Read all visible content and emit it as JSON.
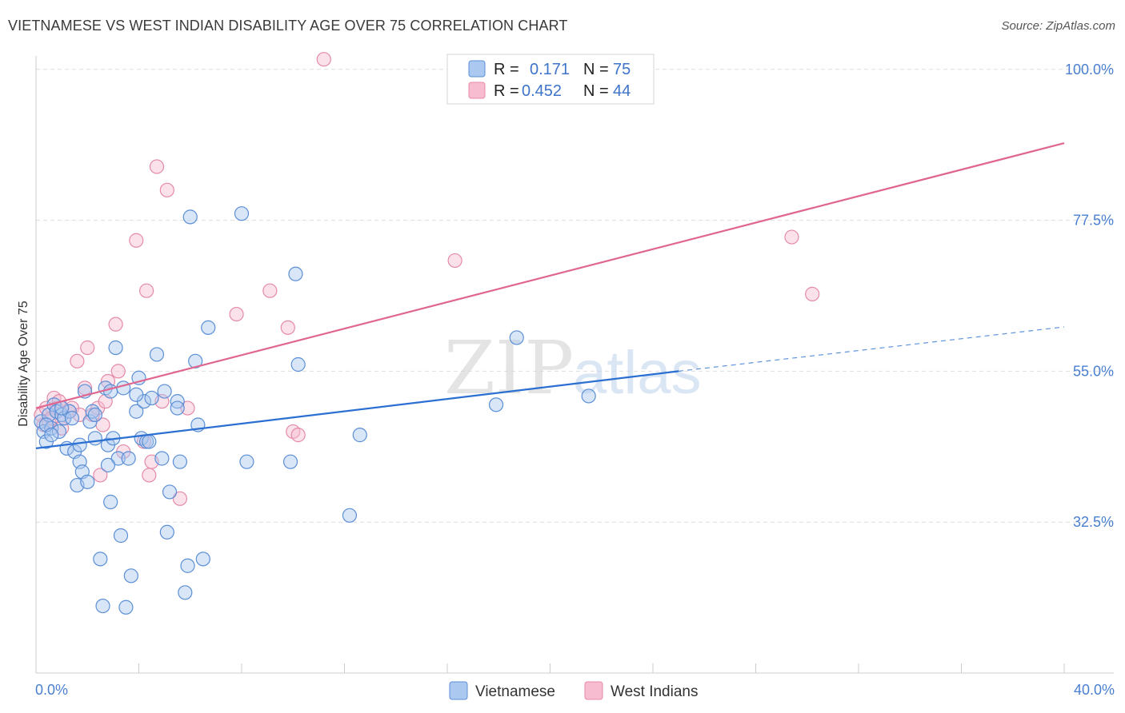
{
  "title": "VIETNAMESE VS WEST INDIAN DISABILITY AGE OVER 75 CORRELATION CHART",
  "source": "Source: ZipAtlas.com",
  "watermark": {
    "zip": "ZIP",
    "atlas": "atlas"
  },
  "colors": {
    "vietnamese_fill": "#aac8f0",
    "vietnamese_stroke": "#5b8fd6",
    "vietnamese_line": "#2a6fd1",
    "west_indian_fill": "#f7bcd0",
    "west_indian_stroke": "#e58aa8",
    "west_indian_line": "#e0668f",
    "tick_label": "#4a7fd0",
    "grid": "#dedede"
  },
  "legend": {
    "rows": [
      {
        "r_label": "R =",
        "r_value": "0.171",
        "n_label": "N =",
        "n_value": "75"
      },
      {
        "r_label": "R =",
        "r_value": "0.452",
        "n_label": "N =",
        "n_value": "44"
      }
    ]
  },
  "chart_data": {
    "type": "scatter",
    "title": "VIETNAMESE VS WEST INDIAN DISABILITY AGE OVER 75 CORRELATION CHART",
    "xlabel": "",
    "ylabel": "Disability Age Over 75",
    "xlim": [
      0,
      40
    ],
    "ylim": [
      10,
      102
    ],
    "x_tick_labels": [
      "0.0%",
      "40.0%"
    ],
    "y_ticks": [
      32.5,
      55.0,
      77.5,
      100.0
    ],
    "y_tick_labels": [
      "32.5%",
      "55.0%",
      "77.5%",
      "100.0%"
    ],
    "grid": true,
    "legend_position": "top-center",
    "series": [
      {
        "name": "Vietnamese",
        "R": 0.171,
        "N": 75,
        "trend": {
          "x0": 0,
          "y0": 43.5,
          "x1": 25,
          "y1": 55.0,
          "dashed_to_x": 40,
          "dashed_to_y": 61.6
        },
        "points": [
          [
            0.2,
            47.5
          ],
          [
            0.3,
            46.0
          ],
          [
            0.4,
            44.5
          ],
          [
            0.5,
            48.5
          ],
          [
            0.6,
            46.5
          ],
          [
            0.7,
            50.0
          ],
          [
            0.8,
            49.0
          ],
          [
            0.9,
            46.0
          ],
          [
            1.0,
            48.5
          ],
          [
            1.1,
            48.0
          ],
          [
            1.2,
            43.5
          ],
          [
            1.3,
            49.0
          ],
          [
            1.4,
            48.0
          ],
          [
            1.5,
            43.0
          ],
          [
            1.6,
            38.0
          ],
          [
            1.7,
            41.5
          ],
          [
            1.8,
            40.0
          ],
          [
            1.9,
            52.0
          ],
          [
            2.0,
            38.5
          ],
          [
            2.1,
            47.5
          ],
          [
            2.2,
            49.0
          ],
          [
            2.3,
            45.0
          ],
          [
            2.5,
            27.0
          ],
          [
            2.6,
            20.0
          ],
          [
            2.7,
            52.5
          ],
          [
            2.8,
            44.0
          ],
          [
            2.9,
            35.5
          ],
          [
            3.0,
            45.0
          ],
          [
            3.1,
            58.5
          ],
          [
            3.2,
            42.0
          ],
          [
            3.3,
            30.5
          ],
          [
            3.4,
            52.5
          ],
          [
            3.5,
            19.8
          ],
          [
            3.6,
            42.0
          ],
          [
            3.7,
            24.5
          ],
          [
            3.9,
            49.0
          ],
          [
            4.0,
            54.0
          ],
          [
            4.1,
            45.0
          ],
          [
            4.2,
            50.5
          ],
          [
            4.3,
            44.5
          ],
          [
            4.5,
            51.0
          ],
          [
            4.7,
            57.5
          ],
          [
            4.9,
            42.0
          ],
          [
            5.0,
            52.0
          ],
          [
            5.1,
            31.0
          ],
          [
            5.2,
            37.0
          ],
          [
            5.5,
            50.5
          ],
          [
            5.6,
            41.5
          ],
          [
            5.8,
            22.0
          ],
          [
            5.9,
            26.0
          ],
          [
            6.0,
            78.0
          ],
          [
            6.2,
            56.5
          ],
          [
            6.5,
            27.0
          ],
          [
            6.7,
            61.5
          ],
          [
            8.0,
            78.5
          ],
          [
            8.2,
            41.5
          ],
          [
            9.9,
            41.5
          ],
          [
            10.1,
            69.5
          ],
          [
            10.2,
            56.0
          ],
          [
            12.2,
            33.5
          ],
          [
            12.6,
            45.5
          ],
          [
            17.9,
            50.0
          ],
          [
            18.7,
            60.0
          ],
          [
            21.5,
            51.3
          ],
          [
            0.4,
            47.0
          ],
          [
            1.0,
            49.5
          ],
          [
            2.3,
            48.5
          ],
          [
            3.9,
            51.5
          ],
          [
            5.5,
            49.5
          ],
          [
            6.3,
            47.0
          ],
          [
            0.6,
            45.5
          ],
          [
            2.8,
            41.0
          ],
          [
            4.4,
            44.5
          ],
          [
            1.7,
            44.0
          ],
          [
            2.9,
            52.0
          ]
        ]
      },
      {
        "name": "West Indians",
        "R": 0.452,
        "N": 44,
        "trend": {
          "x0": 0,
          "y0": 49.5,
          "x1": 40,
          "y1": 89.0
        },
        "points": [
          [
            0.2,
            48.5
          ],
          [
            0.3,
            47.0
          ],
          [
            0.4,
            49.5
          ],
          [
            0.5,
            47.5
          ],
          [
            0.6,
            48.0
          ],
          [
            0.7,
            51.0
          ],
          [
            0.8,
            49.5
          ],
          [
            0.9,
            50.5
          ],
          [
            1.0,
            46.5
          ],
          [
            1.1,
            48.0
          ],
          [
            1.4,
            49.5
          ],
          [
            1.6,
            56.5
          ],
          [
            1.7,
            48.5
          ],
          [
            1.9,
            52.5
          ],
          [
            2.0,
            58.5
          ],
          [
            2.2,
            48.5
          ],
          [
            2.4,
            49.5
          ],
          [
            2.5,
            39.5
          ],
          [
            2.6,
            47.0
          ],
          [
            2.7,
            50.5
          ],
          [
            2.8,
            53.5
          ],
          [
            3.1,
            62.0
          ],
          [
            3.2,
            55.0
          ],
          [
            3.4,
            43.0
          ],
          [
            3.9,
            74.5
          ],
          [
            4.2,
            44.5
          ],
          [
            4.3,
            67.0
          ],
          [
            4.4,
            39.5
          ],
          [
            4.5,
            41.5
          ],
          [
            4.7,
            85.5
          ],
          [
            4.9,
            50.5
          ],
          [
            5.1,
            82.0
          ],
          [
            5.6,
            36.0
          ],
          [
            5.9,
            49.5
          ],
          [
            7.8,
            63.5
          ],
          [
            9.1,
            67.0
          ],
          [
            9.8,
            61.5
          ],
          [
            10.0,
            46.0
          ],
          [
            10.2,
            45.5
          ],
          [
            11.2,
            101.5
          ],
          [
            16.3,
            71.5
          ],
          [
            29.4,
            75.0
          ],
          [
            30.2,
            66.5
          ],
          [
            1.3,
            49.0
          ]
        ]
      }
    ]
  },
  "bottom_legend": [
    {
      "label": "Vietnamese"
    },
    {
      "label": "West Indians"
    }
  ]
}
